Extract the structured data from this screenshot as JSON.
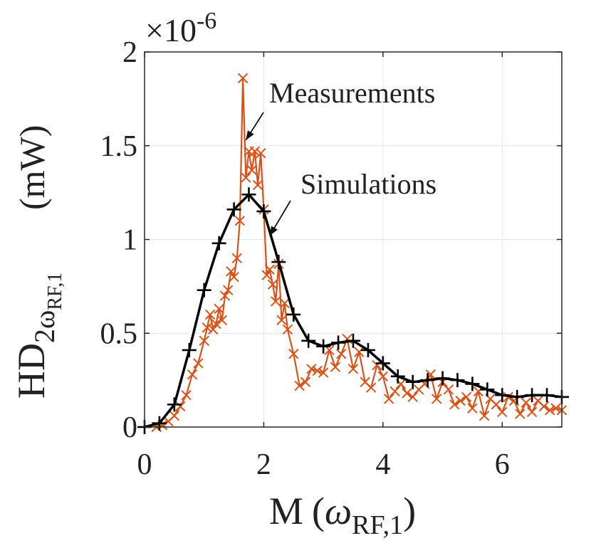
{
  "chart_data": {
    "type": "line",
    "xlabel": "M",
    "xlabel_paren_open": "(",
    "xlabel_symbol": "ω",
    "xlabel_sub": "RF,1",
    "xlabel_paren_close": ")",
    "ylabel_main": "HD",
    "ylabel_sub": "2ω",
    "ylabel_subsub": "RF,1",
    "ylabel_unit": "(mW)",
    "y_multiplier": "×10",
    "y_multiplier_exp": "-6",
    "xlim": [
      0,
      7
    ],
    "ylim": [
      0,
      2
    ],
    "xticks": [
      0,
      2,
      4,
      6
    ],
    "xtick_labels": [
      "0",
      "2",
      "4",
      "6"
    ],
    "yticks": [
      0,
      0.5,
      1,
      1.5,
      2
    ],
    "ytick_labels": [
      "0",
      "0.5",
      "1",
      "1.5",
      "2"
    ],
    "grid": true,
    "colors": {
      "simulations": "#000000",
      "measurements": "#d95319"
    },
    "annotations": [
      {
        "label": "Measurements",
        "target_x": 1.7,
        "target_y": 1.53
      },
      {
        "label": "Simulations",
        "target_x": 2.1,
        "target_y": 1.02
      }
    ],
    "series": [
      {
        "name": "Simulations",
        "marker": "+",
        "x": [
          0,
          0.25,
          0.5,
          0.75,
          1.0,
          1.25,
          1.5,
          1.75,
          2.0,
          2.25,
          2.5,
          2.75,
          3.0,
          3.25,
          3.5,
          3.75,
          4.0,
          4.25,
          4.5,
          4.75,
          5.0,
          5.25,
          5.5,
          5.75,
          6.0,
          6.25,
          6.5,
          6.75,
          7.0
        ],
        "y": [
          0.0,
          0.02,
          0.12,
          0.41,
          0.73,
          0.98,
          1.16,
          1.24,
          1.15,
          0.88,
          0.6,
          0.46,
          0.43,
          0.45,
          0.46,
          0.41,
          0.34,
          0.27,
          0.24,
          0.25,
          0.26,
          0.25,
          0.23,
          0.2,
          0.17,
          0.16,
          0.17,
          0.17,
          0.16
        ]
      },
      {
        "name": "Measurements",
        "marker": "x",
        "x": [
          0.2,
          0.3,
          0.4,
          0.5,
          0.6,
          0.7,
          0.8,
          0.9,
          1.0,
          1.05,
          1.1,
          1.15,
          1.2,
          1.25,
          1.3,
          1.35,
          1.4,
          1.45,
          1.5,
          1.55,
          1.6,
          1.65,
          1.7,
          1.75,
          1.8,
          1.85,
          1.9,
          1.95,
          2.0,
          2.05,
          2.1,
          2.15,
          2.2,
          2.25,
          2.3,
          2.35,
          2.4,
          2.5,
          2.6,
          2.7,
          2.8,
          2.9,
          3.0,
          3.1,
          3.2,
          3.3,
          3.4,
          3.5,
          3.6,
          3.7,
          3.8,
          3.9,
          4.0,
          4.1,
          4.2,
          4.3,
          4.4,
          4.5,
          4.6,
          4.7,
          4.8,
          4.9,
          5.0,
          5.1,
          5.2,
          5.3,
          5.4,
          5.5,
          5.6,
          5.7,
          5.8,
          5.9,
          6.0,
          6.1,
          6.2,
          6.3,
          6.4,
          6.5,
          6.6,
          6.7,
          6.8,
          6.9,
          7.0
        ],
        "y": [
          0.0,
          0.01,
          0.03,
          0.06,
          0.11,
          0.17,
          0.28,
          0.34,
          0.46,
          0.53,
          0.6,
          0.52,
          0.55,
          0.63,
          0.57,
          0.7,
          0.73,
          0.83,
          0.8,
          0.9,
          1.1,
          1.86,
          1.33,
          1.47,
          1.37,
          1.47,
          1.29,
          1.46,
          1.16,
          0.81,
          0.84,
          0.76,
          0.67,
          0.87,
          0.57,
          0.66,
          0.52,
          0.39,
          0.22,
          0.24,
          0.31,
          0.3,
          0.29,
          0.41,
          0.32,
          0.39,
          0.47,
          0.31,
          0.4,
          0.24,
          0.21,
          0.33,
          0.27,
          0.15,
          0.19,
          0.23,
          0.18,
          0.16,
          0.2,
          0.23,
          0.28,
          0.15,
          0.24,
          0.2,
          0.12,
          0.14,
          0.16,
          0.1,
          0.19,
          0.06,
          0.15,
          0.12,
          0.08,
          0.16,
          0.14,
          0.07,
          0.13,
          0.08,
          0.14,
          0.11,
          0.09,
          0.1,
          0.09
        ]
      }
    ]
  }
}
